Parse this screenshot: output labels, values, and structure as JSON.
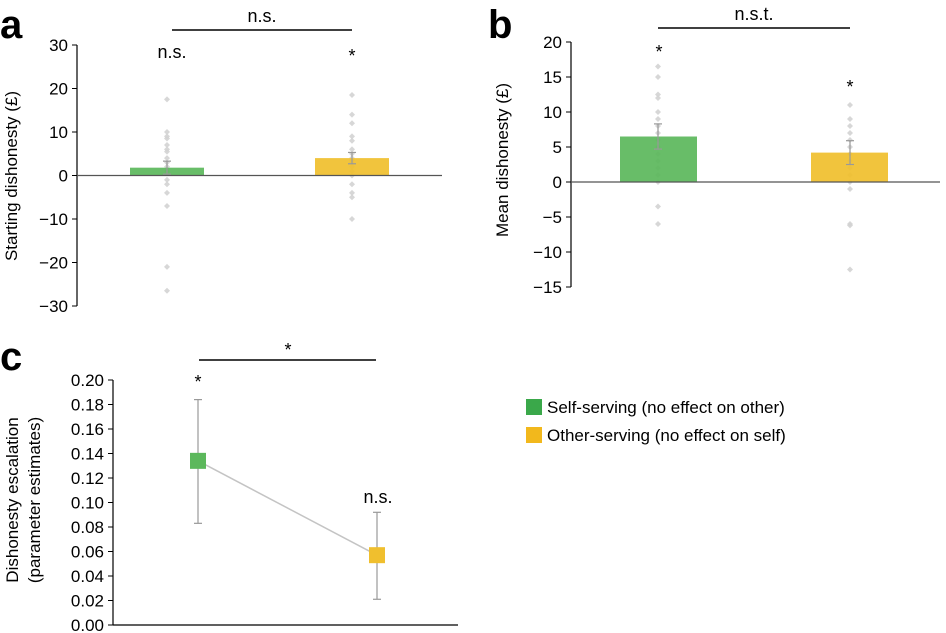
{
  "colors": {
    "green": "#5cb85c",
    "yellow": "#f0bf2e",
    "dot": "#d3d3d3",
    "err": "#999999",
    "line": "#c4c4c4"
  },
  "legend": [
    {
      "label": "Self-serving (no effect on other)",
      "color": "#3aa84a"
    },
    {
      "label": "Other-serving (no effect on self)",
      "color": "#f2b81c"
    }
  ],
  "chart_data": [
    {
      "panel": "a",
      "type": "bar",
      "ylabel": "Starting dishonesty (£)",
      "ylim": [
        -30,
        30
      ],
      "ytick_values": [
        30,
        20,
        10,
        0,
        -10,
        -20,
        -30
      ],
      "ytick_labels": [
        "30",
        "20",
        "10",
        "0",
        "−10",
        "−20",
        "−30"
      ],
      "categories": [
        "Self-serving",
        "Other-serving"
      ],
      "values": [
        1.8,
        4.0
      ],
      "errors": [
        1.5,
        1.3
      ],
      "points": [
        [
          17.5,
          10,
          9,
          8.5,
          7,
          6,
          5.5,
          4,
          3,
          2,
          1,
          -1,
          -2,
          -4,
          -7,
          -21,
          -26.5
        ],
        [
          18.5,
          14,
          12,
          9,
          8,
          6,
          5,
          4,
          3.5,
          3,
          2,
          1,
          0,
          -2,
          -4,
          -5,
          -10
        ]
      ],
      "bar_sig": [
        "n.s.",
        "*"
      ],
      "bracket_sig": "n.s."
    },
    {
      "panel": "b",
      "type": "bar",
      "ylabel": "Mean dishonesty (£)",
      "ylim": [
        -15,
        20
      ],
      "ytick_values": [
        20,
        15,
        10,
        5,
        0,
        -5,
        -10,
        -15
      ],
      "ytick_labels": [
        "20",
        "15",
        "10",
        "5",
        "0",
        "−5",
        "−10",
        "−15"
      ],
      "categories": [
        "Self-serving",
        "Other-serving"
      ],
      "values": [
        6.5,
        4.2
      ],
      "errors": [
        1.8,
        1.7
      ],
      "points": [
        [
          16.5,
          15,
          12.5,
          12,
          10,
          9,
          8,
          7,
          6,
          5,
          4,
          3,
          2,
          1,
          0,
          -3.5,
          -6
        ],
        [
          11,
          9,
          8,
          7,
          6,
          5,
          4,
          3,
          2,
          1,
          0,
          -1,
          -6,
          -6.2,
          -12.5
        ]
      ],
      "bar_sig": [
        "*",
        "*"
      ],
      "bracket_sig": "n.s.t."
    },
    {
      "panel": "c",
      "type": "line",
      "ylabel": [
        "Dishonesty escalation",
        "(parameter estimates)"
      ],
      "ylim": [
        0,
        0.2
      ],
      "ytick_values": [
        0.2,
        0.18,
        0.16,
        0.14,
        0.12,
        0.1,
        0.08,
        0.06,
        0.04,
        0.02,
        0
      ],
      "ytick_labels": [
        "0.20",
        "0.18",
        "0.16",
        "0.14",
        "0.12",
        "0.10",
        "0.08",
        "0.06",
        "0.04",
        "0.02",
        "0.00"
      ],
      "categories": [
        "Self-serving",
        "Other-serving"
      ],
      "values": [
        0.134,
        0.057
      ],
      "err_low": [
        0.083,
        0.021
      ],
      "err_high": [
        0.184,
        0.092
      ],
      "point_sig": [
        "*",
        "n.s."
      ],
      "bracket_sig": "*"
    }
  ]
}
